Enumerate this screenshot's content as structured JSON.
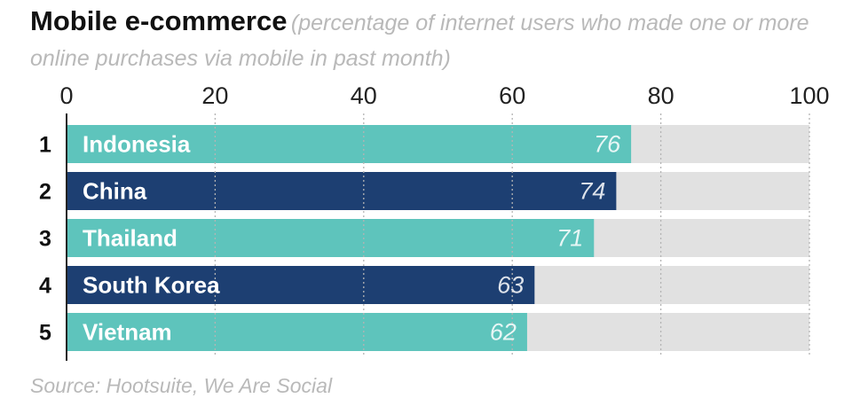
{
  "title": "Mobile e-commerce",
  "subtitle": "(percentage of internet users who made one or more online purchases via mobile in past month)",
  "source": "Source: Hootsuite, We Are Social",
  "colors": {
    "teal": "#5ec4bc",
    "navy": "#1d3f72",
    "track": "#e1e1e1",
    "tick": "#222222",
    "grid": "#b4b4b4"
  },
  "chart_data": {
    "type": "bar",
    "orientation": "horizontal",
    "title": "Mobile e-commerce",
    "subtitle": "(percentage of internet users who made one or more online purchases via mobile in past month)",
    "xlim": [
      0,
      100
    ],
    "xticks": [
      0,
      20,
      40,
      60,
      80,
      100
    ],
    "grid": true,
    "ranks": [
      "1",
      "2",
      "3",
      "4",
      "5"
    ],
    "categories": [
      "Indonesia",
      "China",
      "Thailand",
      "South Korea",
      "Vietnam"
    ],
    "values": [
      76,
      74,
      71,
      63,
      62
    ],
    "bar_colors": [
      "#5ec4bc",
      "#1d3f72",
      "#5ec4bc",
      "#1d3f72",
      "#5ec4bc"
    ]
  }
}
